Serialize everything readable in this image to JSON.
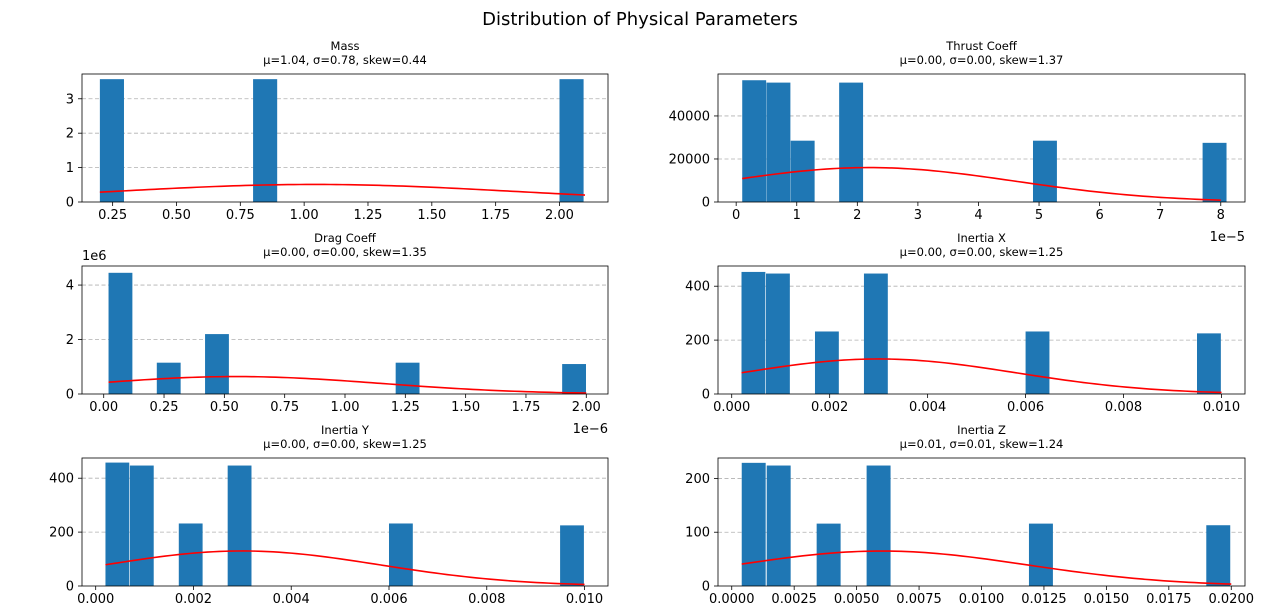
{
  "suptitle": "Distribution of Physical Parameters",
  "colors": {
    "bar": "#1f77b4",
    "curve": "#ff0000",
    "grid": "#b0b0b0"
  },
  "chart_data": [
    {
      "type": "bar",
      "title": "Mass",
      "subtitle": "μ=1.04, σ=0.78, skew=0.44",
      "xlim": [
        0.13,
        2.19
      ],
      "ylim": [
        0,
        3.72
      ],
      "xticks": [
        0.25,
        0.5,
        0.75,
        1.0,
        1.25,
        1.5,
        1.75,
        2.0
      ],
      "xtick_labels": [
        "0.25",
        "0.50",
        "0.75",
        "1.00",
        "1.25",
        "1.50",
        "1.75",
        "2.00"
      ],
      "yticks": [
        0,
        1,
        2,
        3
      ],
      "ytick_labels": [
        "0",
        "1",
        "2",
        "3"
      ],
      "x_multiplier": "",
      "y_multiplier": "",
      "bar_width": 0.0944,
      "bars": [
        [
          0.2,
          3.57
        ],
        [
          0.8,
          3.57
        ],
        [
          2.0,
          3.57
        ]
      ],
      "curve_mean": 1.04,
      "curve_std": 0.78,
      "curve_x": [
        0.2,
        2.1
      ],
      "grid": "y-dashed"
    },
    {
      "type": "bar",
      "title": "Thrust Coeff",
      "subtitle": "μ=0.00, σ=0.00, skew=1.37",
      "xlim": [
        -0.3,
        8.4
      ],
      "ylim": [
        0,
        59500
      ],
      "xticks": [
        0,
        1,
        2,
        3,
        4,
        5,
        6,
        7,
        8
      ],
      "xtick_labels": [
        "0",
        "1",
        "2",
        "3",
        "4",
        "5",
        "6",
        "7",
        "8"
      ],
      "yticks": [
        0,
        20000,
        40000
      ],
      "ytick_labels": [
        "0",
        "20000",
        "40000"
      ],
      "x_multiplier": "1e−5",
      "y_multiplier": "",
      "bar_width": 0.395,
      "bars": [
        [
          0.1,
          56600
        ],
        [
          0.5,
          55500
        ],
        [
          0.9,
          28500
        ],
        [
          1.7,
          55500
        ],
        [
          4.9,
          28500
        ],
        [
          7.7,
          27500
        ]
      ],
      "curve_mean": 2.2,
      "curve_std": 2.4,
      "curve_amp": 16000,
      "curve_x": [
        0.1,
        8.0
      ],
      "grid": "y-dashed"
    },
    {
      "type": "bar",
      "title": "Drag Coeff",
      "subtitle": "μ=0.00, σ=0.00, skew=1.35",
      "xlim": [
        -0.09,
        2.09
      ],
      "ylim": [
        0,
        4.7
      ],
      "xticks": [
        0,
        0.25,
        0.5,
        0.75,
        1.0,
        1.25,
        1.5,
        1.75,
        2.0
      ],
      "xtick_labels": [
        "0.00",
        "0.25",
        "0.50",
        "0.75",
        "1.00",
        "1.25",
        "1.50",
        "1.75",
        "2.00"
      ],
      "yticks": [
        0,
        2,
        4
      ],
      "ytick_labels": [
        "0",
        "2",
        "4"
      ],
      "x_multiplier": "1e−6",
      "y_multiplier": "1e6",
      "bar_width": 0.0988,
      "bars": [
        [
          0.02,
          4.45
        ],
        [
          0.22,
          1.15
        ],
        [
          0.42,
          2.2
        ],
        [
          1.21,
          1.15
        ],
        [
          1.9,
          1.1
        ]
      ],
      "curve_mean": 0.55,
      "curve_std": 0.6,
      "curve_amp": 0.64,
      "curve_x": [
        0.02,
        2.0
      ],
      "grid": "y-dashed"
    },
    {
      "type": "bar",
      "title": "Inertia X",
      "subtitle": "μ=0.00, σ=0.00, skew=1.25",
      "xlim": [
        -0.00028,
        0.01048
      ],
      "ylim": [
        0,
        475
      ],
      "xticks": [
        0,
        0.002,
        0.004,
        0.006,
        0.008,
        0.01
      ],
      "xtick_labels": [
        "0.000",
        "0.002",
        "0.004",
        "0.006",
        "0.008",
        "0.010"
      ],
      "yticks": [
        0,
        200,
        400
      ],
      "ytick_labels": [
        "0",
        "200",
        "400"
      ],
      "x_multiplier": "",
      "y_multiplier": "",
      "bar_width": 0.000487,
      "bars": [
        [
          0.0002,
          453
        ],
        [
          0.0007,
          447
        ],
        [
          0.0017,
          232
        ],
        [
          0.0027,
          447
        ],
        [
          0.006,
          232
        ],
        [
          0.0095,
          225
        ]
      ],
      "curve_mean": 0.003,
      "curve_std": 0.0028,
      "curve_amp": 130,
      "curve_x": [
        0.0002,
        0.01
      ],
      "grid": "y-dashed"
    },
    {
      "type": "bar",
      "title": "Inertia Y",
      "subtitle": "μ=0.00, σ=0.00, skew=1.25",
      "xlim": [
        -0.00028,
        0.01048
      ],
      "ylim": [
        0,
        475
      ],
      "xticks": [
        0,
        0.002,
        0.004,
        0.006,
        0.008,
        0.01
      ],
      "xtick_labels": [
        "0.000",
        "0.002",
        "0.004",
        "0.006",
        "0.008",
        "0.010"
      ],
      "yticks": [
        0,
        200,
        400
      ],
      "ytick_labels": [
        "0",
        "200",
        "400"
      ],
      "x_multiplier": "",
      "y_multiplier": "",
      "bar_width": 0.000487,
      "bars": [
        [
          0.0002,
          458
        ],
        [
          0.0007,
          447
        ],
        [
          0.0017,
          232
        ],
        [
          0.0027,
          447
        ],
        [
          0.006,
          232
        ],
        [
          0.0095,
          225
        ]
      ],
      "curve_mean": 0.003,
      "curve_std": 0.0028,
      "curve_amp": 130,
      "curve_x": [
        0.0002,
        0.01
      ],
      "grid": "y-dashed"
    },
    {
      "type": "bar",
      "title": "Inertia Z",
      "subtitle": "μ=0.01, σ=0.01, skew=1.24",
      "xlim": [
        -0.00055,
        0.02055
      ],
      "ylim": [
        0,
        238
      ],
      "xticks": [
        0,
        0.0025,
        0.005,
        0.0075,
        0.01,
        0.0125,
        0.015,
        0.0175,
        0.02
      ],
      "xtick_labels": [
        "0.0000",
        "0.0025",
        "0.0050",
        "0.0075",
        "0.0100",
        "0.0125",
        "0.0150",
        "0.0175",
        "0.0200"
      ],
      "yticks": [
        0,
        100,
        200
      ],
      "ytick_labels": [
        "0",
        "100",
        "200"
      ],
      "x_multiplier": "",
      "y_multiplier": "",
      "bar_width": 0.000959,
      "bars": [
        [
          0.0004,
          229
        ],
        [
          0.0014,
          224
        ],
        [
          0.0034,
          116
        ],
        [
          0.0054,
          224
        ],
        [
          0.0119,
          116
        ],
        [
          0.019,
          113
        ]
      ],
      "curve_mean": 0.006,
      "curve_std": 0.0058,
      "curve_amp": 65,
      "curve_x": [
        0.0004,
        0.02
      ],
      "grid": "y-dashed"
    }
  ]
}
